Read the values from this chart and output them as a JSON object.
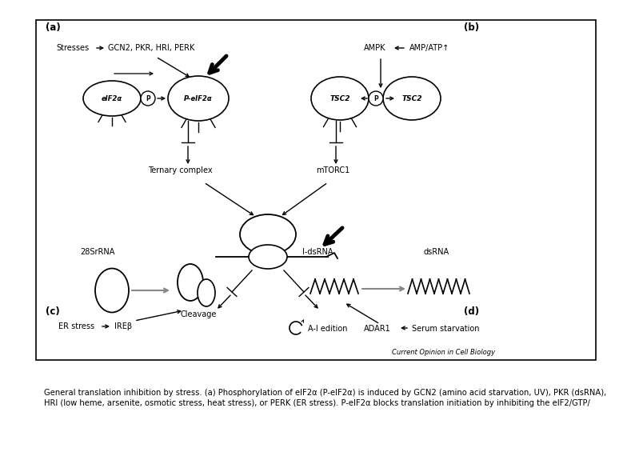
{
  "figure_width": 7.94,
  "figure_height": 5.95,
  "dpi": 100,
  "bg_color": "#ffffff",
  "caption_line1_before": "General translation inhibition by stress. ",
  "caption_line1_bold": "(a)",
  "caption_line1_after": " Phosphorylation of eIF2α (P-eIF2α) is induced by GCN2 (amino acid starvation, UV), PKR (dsRNA),",
  "caption_line2": "HRI (low heme, arsenite, osmotic stress, heat stress), or PERK (ER stress). P-eIF2α blocks translation initiation by inhibiting the eIF2/GTP/",
  "caption_fontsize": 7.2,
  "journal_text": "Current Opinion in Cell Biology",
  "label_fontsize": 8.5
}
